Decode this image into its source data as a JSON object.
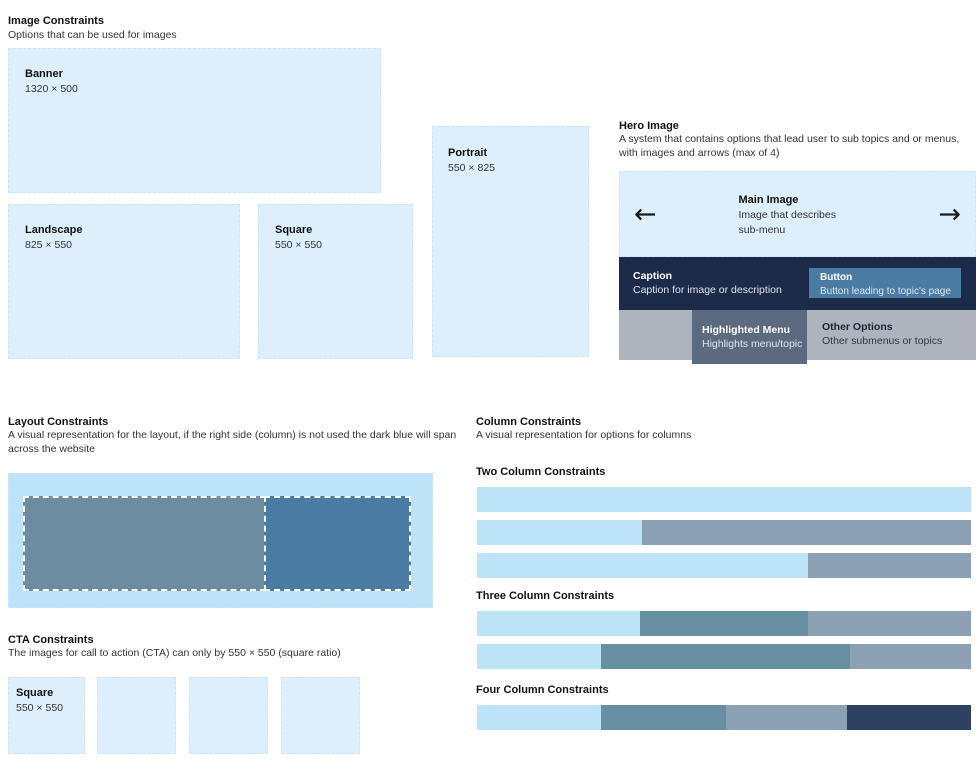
{
  "colors": {
    "light_box": "#ddeefc",
    "light_bar": "#bde3f8",
    "steel": "#4a7ba3",
    "steel_muted": "#6b8ca1",
    "bar_steel": "#688ea4",
    "bar_gray": "#8da1b5",
    "hero_gray": "#adb4bd",
    "slate": "#5c6a80",
    "navy_caption": "#1c2b4a",
    "navy_dark": "#2e4160"
  },
  "image_constraints": {
    "title": "Image Constraints",
    "subtitle": "Options that can be used for images",
    "banner": {
      "label": "Banner",
      "size": "1320 × 500"
    },
    "landscape": {
      "label": "Landscape",
      "size": "825 × 550"
    },
    "square": {
      "label": "Square",
      "size": "550 × 550"
    },
    "portrait": {
      "label": "Portrait",
      "size": "550 × 825"
    }
  },
  "hero": {
    "title": "Hero Image",
    "description": "A system that contains options that lead user to sub topics and or menus, with images and arrows (max of 4)",
    "arrows": {
      "left": "←",
      "right": "→"
    },
    "main_image": {
      "label": "Main Image",
      "description": "Image that describes sub-menu"
    },
    "caption": {
      "label": "Caption",
      "description": "Caption for image or description"
    },
    "button": {
      "label": "Button",
      "description": "Button leading to topic's page"
    },
    "highlighted_menu": {
      "label": "Highlighted Menu",
      "description": "Highlights menu/topic"
    },
    "other_options": {
      "label": "Other Options",
      "description": "Other submenus or topics"
    }
  },
  "layout_constraints": {
    "title": "Layout Constraints",
    "description": "A visual representation for the layout, if the right side (column) is not used the dark blue will span across the website"
  },
  "cta_constraints": {
    "title": "CTA Constraints",
    "description": "The images for call to action (CTA) can only by 550 × 550 (square ratio)",
    "square": {
      "label": "Square",
      "size": "550 × 550"
    }
  },
  "column_constraints": {
    "title": "Column Constraints",
    "subtitle": "A visual representation for options for columns",
    "groups": [
      {
        "label": "Two Column Constraints",
        "bars": [
          [
            {
              "color": "light_bar",
              "pct": 100
            }
          ],
          [
            {
              "color": "light_bar",
              "pct": 33.5
            },
            {
              "color": "bar_gray",
              "pct": 66.5
            }
          ],
          [
            {
              "color": "light_bar",
              "pct": 67
            },
            {
              "color": "bar_gray",
              "pct": 33
            }
          ]
        ]
      },
      {
        "label": "Three Column Constraints",
        "bars": [
          [
            {
              "color": "light_bar",
              "pct": 33
            },
            {
              "color": "bar_steel",
              "pct": 34
            },
            {
              "color": "bar_gray",
              "pct": 33
            }
          ],
          [
            {
              "color": "light_bar",
              "pct": 25
            },
            {
              "color": "bar_steel",
              "pct": 50.5
            },
            {
              "color": "bar_gray",
              "pct": 24.5
            }
          ]
        ]
      },
      {
        "label": "Four Column Constraints",
        "bars": [
          [
            {
              "color": "light_bar",
              "pct": 25
            },
            {
              "color": "bar_steel",
              "pct": 25.5
            },
            {
              "color": "bar_gray",
              "pct": 24.5
            },
            {
              "color": "navy_dark",
              "pct": 25
            }
          ]
        ]
      }
    ]
  }
}
